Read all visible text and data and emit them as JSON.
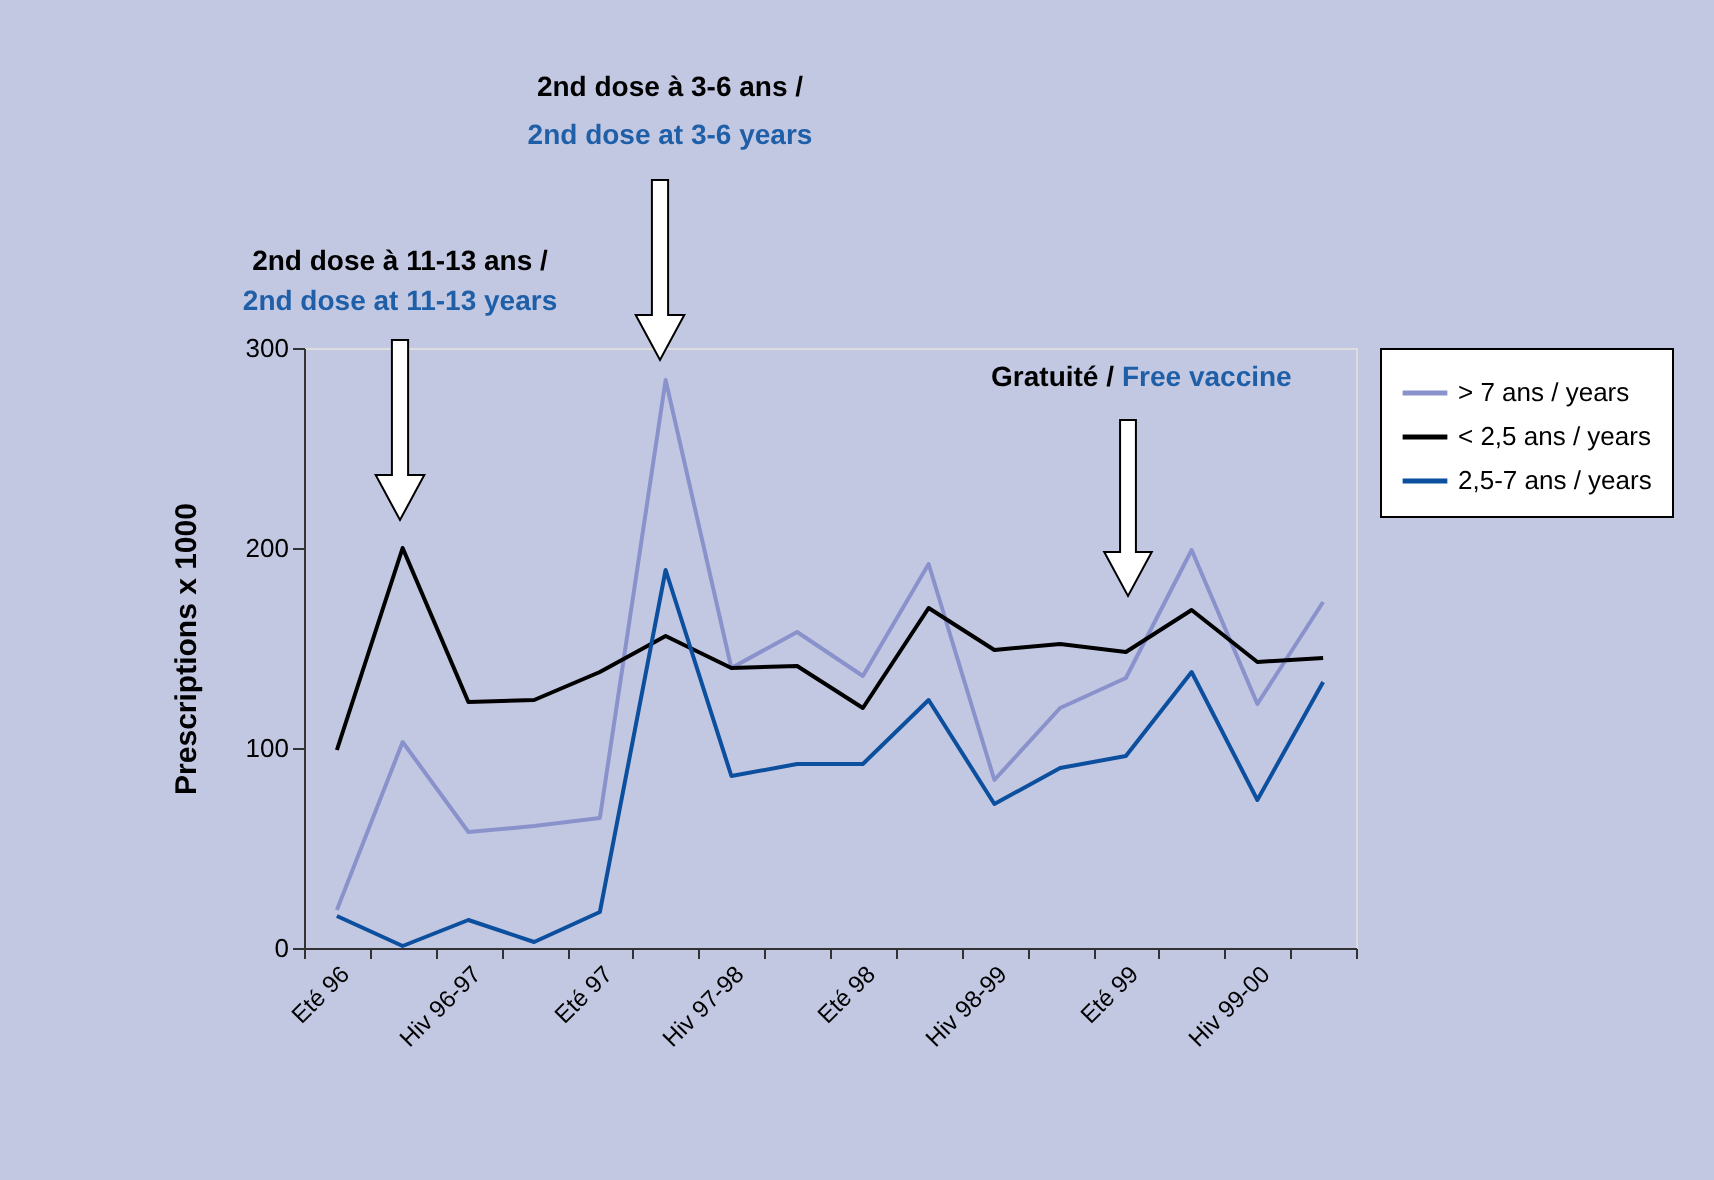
{
  "chart_data": {
    "type": "line",
    "ylabel": "Prescriptions x 1000",
    "categories": [
      "Eté 96",
      null,
      "Hiv 96-97",
      null,
      "Eté 97",
      null,
      "Hiv 97-98",
      null,
      "Eté 98",
      null,
      "Hiv 98-99",
      null,
      "Eté 99",
      null,
      "Hiv 99-00",
      null
    ],
    "series": [
      {
        "name": "> 7 ans / years",
        "color": "#8a92cc",
        "values": [
          19,
          103,
          58,
          61,
          65,
          284,
          140,
          158,
          136,
          192,
          84,
          120,
          135,
          199,
          122,
          173
        ]
      },
      {
        "name": "< 2,5 ans / years",
        "color": "#000000",
        "values": [
          99,
          200,
          123,
          124,
          138,
          156,
          140,
          141,
          120,
          170,
          149,
          152,
          148,
          169,
          143,
          145
        ]
      },
      {
        "name": "2,5-7 ans / years",
        "color": "#0b4f9e",
        "values": [
          16,
          1,
          14,
          3,
          18,
          189,
          86,
          92,
          92,
          124,
          72,
          90,
          96,
          138,
          74,
          133
        ]
      }
    ],
    "ylim": [
      0,
      300
    ],
    "yticks": [
      0,
      100,
      200,
      300
    ],
    "grid": false,
    "legend": "right",
    "marker": "none",
    "line_style": "solid",
    "annotations": [
      "2nd dose à 11-13 ans /",
      "2nd dose at 11-13 years",
      "2nd dose à 3-6 ans /",
      "2nd dose at 3-6 years",
      "Gratuité /",
      "Free vaccine"
    ]
  }
}
